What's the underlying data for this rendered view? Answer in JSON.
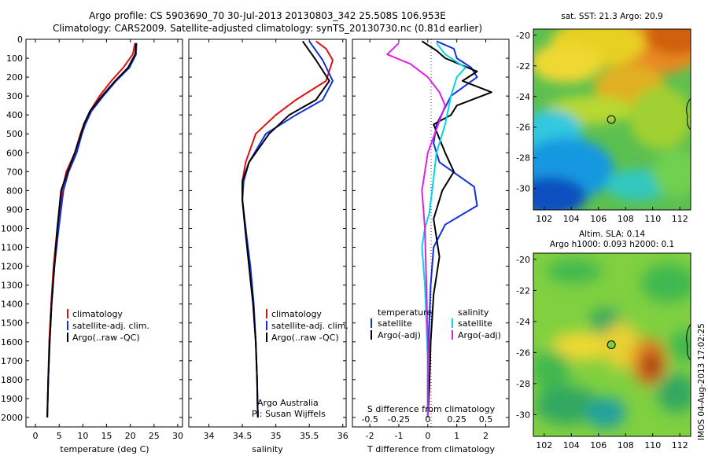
{
  "title_line1": "Argo profile: CS 5903690_70 30-Jul-2013 20130803_342 25.508S 106.953E",
  "title_line2": "Climatology: CARS2009. Satellite-adjusted climatology: synTS_20130730.nc (0.81d earlier)",
  "side_stamp": "IMOS 04-Aug-2013 17:02:25",
  "colors": {
    "climatology": "#e01010",
    "satellite": "#1030e0",
    "argo": "#000000",
    "sal_sat": "#00d8e0",
    "sal_argo": "#e020e0"
  },
  "chart_data": [
    {
      "type": "line",
      "xlabel": "temperature (deg C)",
      "ylabel": "",
      "xlim": [
        -2,
        31
      ],
      "ylim": [
        2050,
        0
      ],
      "xticks": [
        "0",
        "5",
        "10",
        "15",
        "20",
        "25",
        "30"
      ],
      "xtick_values": [
        0,
        5,
        10,
        15,
        20,
        25,
        30
      ],
      "yticks": [
        "0",
        "100",
        "200",
        "300",
        "400",
        "500",
        "600",
        "700",
        "800",
        "900",
        "1000",
        "1100",
        "1200",
        "1300",
        "1400",
        "1500",
        "1600",
        "1700",
        "1800",
        "1900",
        "2000"
      ],
      "ytick_values": [
        0,
        100,
        200,
        300,
        400,
        500,
        600,
        700,
        800,
        900,
        1000,
        1100,
        1200,
        1300,
        1400,
        1500,
        1600,
        1700,
        1800,
        1900,
        2000
      ],
      "legend": [
        "climatology",
        "satellite-adj. clim.",
        "Argo(..raw -QC)"
      ],
      "series": [
        {
          "name": "climatology",
          "color_key": "climatology",
          "x": [
            21.0,
            20.5,
            18.5,
            16.0,
            13.5,
            11.5,
            10.2,
            9.5,
            8.3,
            6.5,
            5.6,
            5.2,
            4.6,
            3.8,
            3.3,
            2.9,
            2.7,
            2.5
          ],
          "y": [
            20,
            80,
            150,
            220,
            300,
            380,
            450,
            500,
            600,
            700,
            800,
            900,
            1000,
            1200,
            1400,
            1600,
            1800,
            2000
          ]
        },
        {
          "name": "satellite-adj. clim.",
          "color_key": "satellite",
          "x": [
            21.3,
            21.2,
            19.8,
            17.0,
            14.3,
            11.8,
            10.5,
            9.8,
            8.7,
            7.0,
            5.9,
            5.4,
            4.9,
            4.0,
            3.4,
            3.0,
            2.7,
            2.5
          ],
          "y": [
            20,
            80,
            150,
            220,
            300,
            380,
            450,
            500,
            600,
            700,
            800,
            900,
            1000,
            1200,
            1400,
            1600,
            1800,
            2000
          ]
        },
        {
          "name": "Argo(..raw -QC)",
          "color_key": "argo",
          "x": [
            21.2,
            21.0,
            19.5,
            16.8,
            14.0,
            11.5,
            10.2,
            9.6,
            8.3,
            6.8,
            5.4,
            5.0,
            4.6,
            4.0,
            3.4,
            3.0,
            2.7,
            2.5
          ],
          "y": [
            20,
            80,
            150,
            220,
            300,
            380,
            450,
            500,
            600,
            700,
            800,
            900,
            1000,
            1200,
            1400,
            1600,
            1800,
            2000
          ]
        }
      ]
    },
    {
      "type": "line",
      "xlabel": "salinity",
      "xlim": [
        33.7,
        36.05
      ],
      "ylim": [
        2050,
        0
      ],
      "xticks": [
        "34",
        "34.5",
        "35",
        "35.5",
        "36"
      ],
      "xtick_values": [
        34,
        34.5,
        35,
        35.5,
        36
      ],
      "legend": [
        "climatology",
        "satellite-adj. clim.",
        "Argo(..raw -QC)"
      ],
      "annotation": [
        "Argo Australia",
        "PI: Susan Wijffels"
      ],
      "series": [
        {
          "name": "climatology",
          "color_key": "climatology",
          "x": [
            35.6,
            35.75,
            35.85,
            35.75,
            35.3,
            35.0,
            34.7,
            34.55,
            34.5,
            34.5,
            34.55,
            34.6,
            34.66,
            34.7,
            34.72,
            34.73
          ],
          "y": [
            10,
            50,
            110,
            220,
            320,
            400,
            500,
            650,
            750,
            850,
            1000,
            1200,
            1400,
            1600,
            1800,
            2000
          ]
        },
        {
          "name": "satellite-adj. clim.",
          "color_key": "satellite",
          "x": [
            35.5,
            35.6,
            35.7,
            35.85,
            35.7,
            35.3,
            34.85,
            34.6,
            34.52,
            34.5,
            34.55,
            34.62,
            34.67,
            34.7,
            34.72,
            34.73
          ],
          "y": [
            10,
            60,
            110,
            220,
            320,
            400,
            500,
            650,
            750,
            850,
            1000,
            1200,
            1400,
            1600,
            1800,
            2000
          ]
        },
        {
          "name": "Argo(..raw -QC)",
          "color_key": "argo",
          "x": [
            35.4,
            35.5,
            35.6,
            35.8,
            35.6,
            35.2,
            34.9,
            34.6,
            34.5,
            34.5,
            34.54,
            34.6,
            34.66,
            34.7,
            34.72,
            34.73
          ],
          "y": [
            10,
            60,
            110,
            220,
            320,
            400,
            500,
            650,
            750,
            850,
            1000,
            1200,
            1400,
            1600,
            1800,
            2000
          ]
        }
      ]
    },
    {
      "type": "line",
      "xlabel": "T difference from climatology",
      "xlabel2": "S difference from climatology",
      "xlim": [
        -2.6,
        2.8
      ],
      "ylim": [
        2050,
        0
      ],
      "xticks": [
        "-2",
        "-1",
        "0",
        "1",
        "2"
      ],
      "xtick_values": [
        -2,
        -1,
        0,
        1,
        2
      ],
      "sticks": [
        "-0.5",
        "-0.25",
        "0",
        "0.25",
        "0.5"
      ],
      "stick_values": [
        -0.5,
        -0.25,
        0,
        0.25,
        0.5
      ],
      "legend_headers": [
        "temperature",
        "salinity"
      ],
      "legend_left": [
        "satellite",
        "Argo(-adj)"
      ],
      "legend_right": [
        "satellite",
        "Argo(-adj)"
      ],
      "series": [
        {
          "name": "satellite",
          "group": "temperature",
          "color_key": "satellite",
          "x": [
            0.3,
            0.9,
            1.0,
            1.5,
            1.7,
            0.8,
            0.3,
            0.2,
            0.4,
            1.6,
            1.7,
            0.6,
            0.2,
            0.1,
            0.05,
            0.0,
            0.0
          ],
          "y": [
            10,
            50,
            100,
            150,
            200,
            300,
            450,
            550,
            650,
            780,
            880,
            980,
            1100,
            1300,
            1500,
            1800,
            2000
          ]
        },
        {
          "name": "Argo(-adj)",
          "group": "temperature",
          "color_key": "argo",
          "x": [
            -0.2,
            0.3,
            0.6,
            1.7,
            1.2,
            2.2,
            1.0,
            0.8,
            0.2,
            0.6,
            0.9,
            0.5,
            0.2,
            0.4,
            0.2,
            0.1,
            0.05,
            0.0
          ],
          "y": [
            10,
            60,
            100,
            170,
            220,
            280,
            350,
            400,
            450,
            600,
            700,
            800,
            950,
            1150,
            1350,
            1600,
            1850,
            2000
          ]
        },
        {
          "name": "satellite",
          "group": "salinity",
          "color_key": "sal_sat",
          "x": [
            0.3,
            0.6,
            1.3,
            1.0,
            0.8,
            0.6,
            0.3,
            0.15,
            0.05,
            -0.1,
            -0.2,
            -0.1,
            -0.05,
            0.0,
            0.0,
            0.0
          ],
          "y": [
            20,
            80,
            150,
            200,
            300,
            450,
            600,
            800,
            920,
            1000,
            1100,
            1300,
            1500,
            1700,
            1900,
            2000
          ]
        },
        {
          "name": "Argo(-adj)",
          "group": "salinity",
          "color_key": "sal_argo",
          "x": [
            -1.0,
            -1.4,
            -0.6,
            0.0,
            0.4,
            0.6,
            0.0,
            -0.2,
            -0.1,
            -0.05,
            0.0,
            0.0
          ],
          "y": [
            20,
            80,
            130,
            200,
            280,
            350,
            600,
            800,
            1000,
            1300,
            1600,
            2000
          ]
        }
      ]
    },
    {
      "type": "heatmap",
      "title": "sat. SST: 21.3  Argo: 20.9",
      "xlim": [
        101.2,
        112.8
      ],
      "ylim": [
        -31.4,
        -19.6
      ],
      "xticks": [
        "102",
        "104",
        "106",
        "108",
        "110",
        "112"
      ],
      "xtick_values": [
        102,
        104,
        106,
        108,
        110,
        112
      ],
      "yticks": [
        "-20",
        "-22",
        "-24",
        "-26",
        "-28",
        "-30"
      ],
      "ytick_values": [
        -20,
        -22,
        -24,
        -26,
        -28,
        -30
      ],
      "marker": {
        "lon": 106.95,
        "lat": -25.5
      }
    },
    {
      "type": "heatmap",
      "title": "Altim. SLA: 0.14",
      "subtitle": "Argo h1000: 0.093  h2000: 0.1",
      "xlim": [
        101.2,
        112.8
      ],
      "ylim": [
        -31.4,
        -19.6
      ],
      "xticks": [
        "102",
        "104",
        "106",
        "108",
        "110",
        "112"
      ],
      "xtick_values": [
        102,
        104,
        106,
        108,
        110,
        112
      ],
      "yticks": [
        "-20",
        "-22",
        "-24",
        "-26",
        "-28",
        "-30"
      ],
      "ytick_values": [
        -20,
        -22,
        -24,
        -26,
        -28,
        -30
      ],
      "marker": {
        "lon": 106.95,
        "lat": -25.5
      }
    }
  ]
}
